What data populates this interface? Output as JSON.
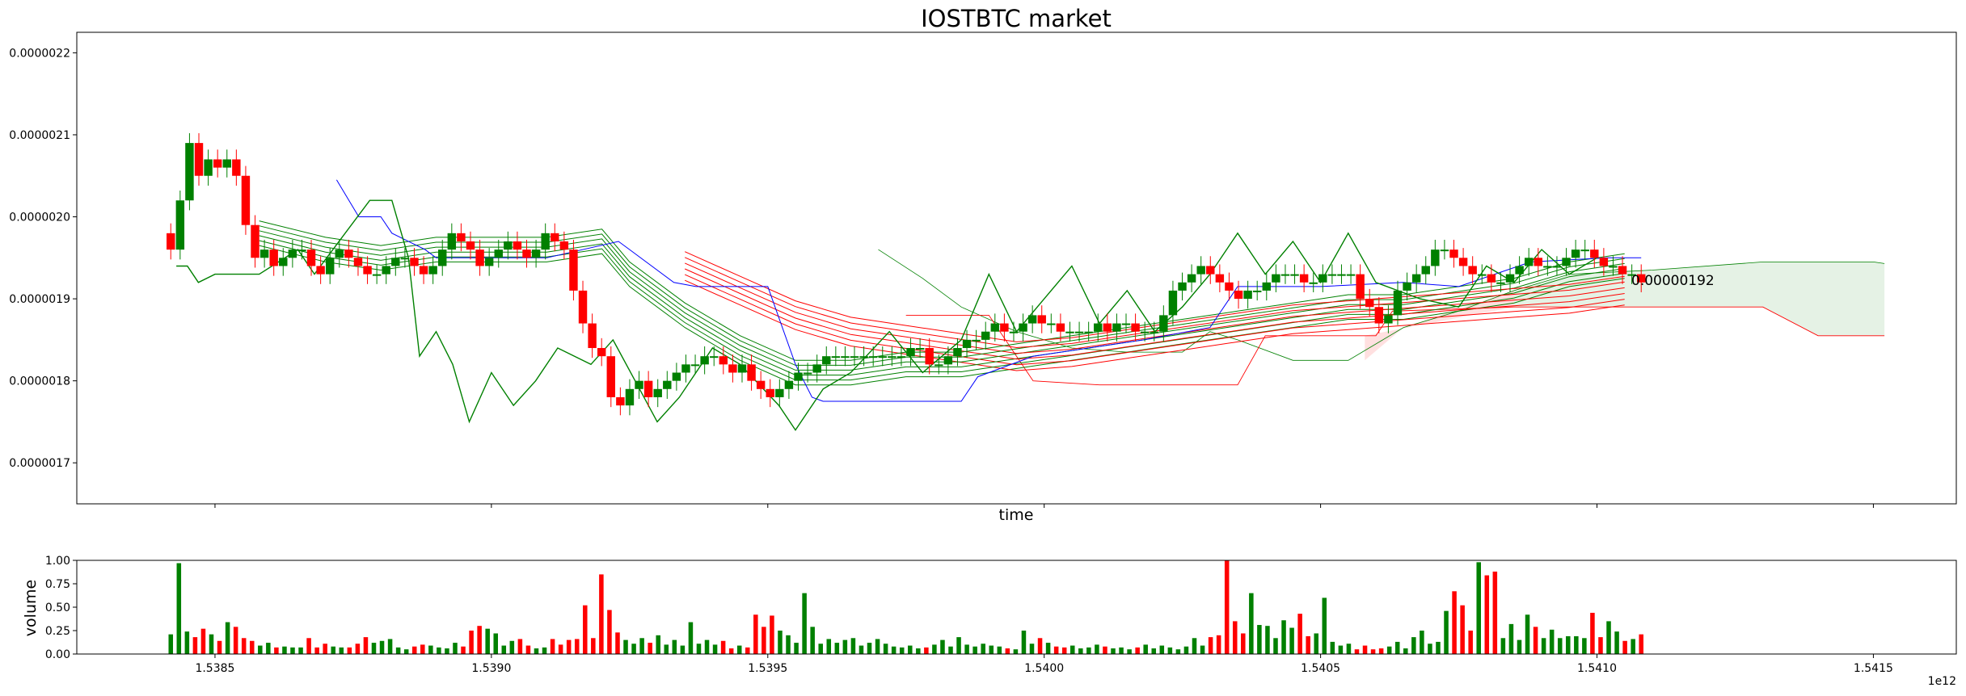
{
  "chart_data": [
    {
      "type": "candlestick",
      "title": "IOSTBTC market",
      "xlabel": "time",
      "ylabel": "",
      "x_unit": "ms timestamp",
      "x_offset_label": "1e12",
      "xlim": [
        1.53825,
        1.54165
      ],
      "ylim": [
        1.65e-06,
        2.225e-06
      ],
      "x_ticks": [
        1.5385,
        1.539,
        1.5395,
        1.54,
        1.5405,
        1.541,
        1.5415
      ],
      "y_ticks": [
        1.7e-06,
        1.8e-06,
        1.9e-06,
        2e-06,
        2.1e-06,
        2.2e-06
      ],
      "y_tick_labels": [
        "0.0000017",
        "0.0000018",
        "0.0000019",
        "0.0000020",
        "0.0000021",
        "0.0000022"
      ],
      "annotations": [
        {
          "text": "0.00000192",
          "x": 1.54108,
          "y": 1.925e-06
        }
      ],
      "candles_x_start": 1.53842,
      "candles_x_end": 1.54108,
      "candle_closes": [
        1.96,
        2.02,
        2.09,
        2.05,
        2.07,
        2.06,
        2.07,
        2.05,
        1.99,
        1.95,
        1.96,
        1.94,
        1.95,
        1.96,
        1.96,
        1.94,
        1.93,
        1.95,
        1.96,
        1.95,
        1.94,
        1.93,
        1.93,
        1.94,
        1.95,
        1.95,
        1.94,
        1.93,
        1.94,
        1.96,
        1.98,
        1.97,
        1.96,
        1.94,
        1.95,
        1.96,
        1.97,
        1.96,
        1.95,
        1.96,
        1.98,
        1.97,
        1.96,
        1.91,
        1.87,
        1.84,
        1.83,
        1.78,
        1.77,
        1.79,
        1.8,
        1.78,
        1.79,
        1.8,
        1.81,
        1.82,
        1.82,
        1.83,
        1.83,
        1.82,
        1.81,
        1.82,
        1.8,
        1.79,
        1.78,
        1.79,
        1.8,
        1.81,
        1.81,
        1.82,
        1.83,
        1.83,
        1.83,
        1.83,
        1.83,
        1.83,
        1.83,
        1.83,
        1.83,
        1.84,
        1.84,
        1.82,
        1.82,
        1.83,
        1.84,
        1.85,
        1.85,
        1.86,
        1.87,
        1.86,
        1.86,
        1.87,
        1.88,
        1.87,
        1.87,
        1.86,
        1.86,
        1.86,
        1.86,
        1.87,
        1.86,
        1.87,
        1.87,
        1.86,
        1.86,
        1.86,
        1.88,
        1.91,
        1.92,
        1.93,
        1.94,
        1.93,
        1.92,
        1.91,
        1.9,
        1.91,
        1.91,
        1.92,
        1.93,
        1.93,
        1.93,
        1.92,
        1.92,
        1.93,
        1.93,
        1.93,
        1.93,
        1.9,
        1.89,
        1.87,
        1.88,
        1.91,
        1.92,
        1.93,
        1.94,
        1.96,
        1.96,
        1.95,
        1.94,
        1.93,
        1.93,
        1.92,
        1.92,
        1.93,
        1.94,
        1.95,
        1.94,
        1.94,
        1.94,
        1.95,
        1.96,
        1.96,
        1.95,
        1.94,
        1.94,
        1.93,
        1.93,
        1.92
      ],
      "moving_averages": {
        "green_short": [
          [
            1.53858,
            1.98
          ],
          [
            1.5387,
            1.96
          ],
          [
            1.5388,
            1.95
          ],
          [
            1.5389,
            1.96
          ],
          [
            1.539,
            1.96
          ],
          [
            1.5391,
            1.96
          ],
          [
            1.5392,
            1.97
          ],
          [
            1.53925,
            1.93
          ],
          [
            1.53935,
            1.88
          ],
          [
            1.53945,
            1.84
          ],
          [
            1.53955,
            1.81
          ],
          [
            1.53965,
            1.81
          ],
          [
            1.53975,
            1.82
          ],
          [
            1.53985,
            1.82
          ],
          [
            1.53995,
            1.83
          ],
          [
            1.54005,
            1.84
          ],
          [
            1.54015,
            1.85
          ],
          [
            1.54025,
            1.86
          ],
          [
            1.54035,
            1.87
          ],
          [
            1.54045,
            1.88
          ],
          [
            1.54055,
            1.89
          ],
          [
            1.54065,
            1.89
          ],
          [
            1.54075,
            1.9
          ],
          [
            1.54085,
            1.91
          ],
          [
            1.54095,
            1.93
          ],
          [
            1.54105,
            1.94
          ]
        ],
        "red_long": [
          [
            1.53935,
            1.94
          ],
          [
            1.53945,
            1.91
          ],
          [
            1.53955,
            1.88
          ],
          [
            1.53965,
            1.86
          ],
          [
            1.53975,
            1.85
          ],
          [
            1.53985,
            1.84
          ],
          [
            1.53995,
            1.83
          ],
          [
            1.54005,
            1.835
          ],
          [
            1.54015,
            1.845
          ],
          [
            1.54025,
            1.855
          ],
          [
            1.54035,
            1.865
          ],
          [
            1.54045,
            1.875
          ],
          [
            1.54055,
            1.88
          ],
          [
            1.54065,
            1.885
          ],
          [
            1.54075,
            1.89
          ],
          [
            1.54085,
            1.895
          ],
          [
            1.54095,
            1.9
          ],
          [
            1.54105,
            1.91
          ]
        ]
      },
      "channel_blue": [
        [
          1.53872,
          2.045
        ],
        [
          1.53876,
          2.0
        ],
        [
          1.5388,
          2.0
        ],
        [
          1.53882,
          1.98
        ],
        [
          1.53888,
          1.96
        ],
        [
          1.5389,
          1.95
        ],
        [
          1.5391,
          1.95
        ],
        [
          1.53923,
          1.97
        ],
        [
          1.53925,
          1.96
        ],
        [
          1.53933,
          1.92
        ],
        [
          1.53937,
          1.915
        ],
        [
          1.5395,
          1.915
        ],
        [
          1.53955,
          1.82
        ],
        [
          1.53958,
          1.78
        ],
        [
          1.5396,
          1.775
        ],
        [
          1.53985,
          1.775
        ],
        [
          1.53988,
          1.805
        ],
        [
          1.53998,
          1.83
        ],
        [
          1.54018,
          1.85
        ],
        [
          1.5403,
          1.865
        ],
        [
          1.54035,
          1.915
        ],
        [
          1.5405,
          1.915
        ],
        [
          1.54065,
          1.92
        ],
        [
          1.54075,
          1.915
        ],
        [
          1.54088,
          1.945
        ],
        [
          1.54102,
          1.95
        ],
        [
          1.54108,
          1.95
        ]
      ],
      "oscillator_green": [
        [
          1.53843,
          1.94
        ],
        [
          1.53845,
          1.94
        ],
        [
          1.53847,
          1.92
        ],
        [
          1.5385,
          1.93
        ],
        [
          1.53858,
          1.93
        ],
        [
          1.53865,
          1.96
        ],
        [
          1.53868,
          1.93
        ],
        [
          1.53878,
          2.02
        ],
        [
          1.53882,
          2.02
        ],
        [
          1.53885,
          1.95
        ],
        [
          1.53887,
          1.83
        ],
        [
          1.5389,
          1.86
        ],
        [
          1.53893,
          1.82
        ],
        [
          1.53896,
          1.75
        ],
        [
          1.539,
          1.81
        ],
        [
          1.53904,
          1.77
        ],
        [
          1.53908,
          1.8
        ],
        [
          1.53912,
          1.84
        ],
        [
          1.53918,
          1.82
        ],
        [
          1.53922,
          1.85
        ],
        [
          1.53926,
          1.8
        ],
        [
          1.5393,
          1.75
        ],
        [
          1.53934,
          1.78
        ],
        [
          1.5394,
          1.84
        ],
        [
          1.53945,
          1.82
        ],
        [
          1.53952,
          1.77
        ],
        [
          1.53955,
          1.74
        ],
        [
          1.5396,
          1.79
        ],
        [
          1.53965,
          1.81
        ],
        [
          1.53972,
          1.86
        ],
        [
          1.53978,
          1.81
        ],
        [
          1.53985,
          1.85
        ],
        [
          1.5399,
          1.93
        ],
        [
          1.53995,
          1.86
        ],
        [
          1.54,
          1.9
        ],
        [
          1.54005,
          1.94
        ],
        [
          1.5401,
          1.87
        ],
        [
          1.54015,
          1.91
        ],
        [
          1.5402,
          1.86
        ],
        [
          1.54025,
          1.89
        ],
        [
          1.5403,
          1.93
        ],
        [
          1.54035,
          1.98
        ],
        [
          1.5404,
          1.93
        ],
        [
          1.54045,
          1.97
        ],
        [
          1.5405,
          1.92
        ],
        [
          1.54055,
          1.98
        ],
        [
          1.5406,
          1.92
        ],
        [
          1.54068,
          1.9
        ],
        [
          1.54075,
          1.89
        ],
        [
          1.5408,
          1.94
        ],
        [
          1.54085,
          1.92
        ],
        [
          1.5409,
          1.96
        ],
        [
          1.54095,
          1.93
        ],
        [
          1.541,
          1.95
        ]
      ],
      "cloud": {
        "lead_a": [
          [
            1.5397,
            1.96
          ],
          [
            1.53978,
            1.925
          ],
          [
            1.53985,
            1.89
          ],
          [
            1.53995,
            1.86
          ],
          [
            1.54005,
            1.84
          ],
          [
            1.54015,
            1.835
          ],
          [
            1.54025,
            1.835
          ],
          [
            1.5403,
            1.86
          ],
          [
            1.54035,
            1.85
          ],
          [
            1.54045,
            1.825
          ],
          [
            1.54055,
            1.825
          ],
          [
            1.54065,
            1.865
          ],
          [
            1.54075,
            1.885
          ],
          [
            1.54085,
            1.91
          ],
          [
            1.54095,
            1.93
          ],
          [
            1.5411,
            1.935
          ],
          [
            1.5413,
            1.945
          ],
          [
            1.5415,
            1.945
          ],
          [
            1.54152,
            1.943
          ]
        ],
        "lead_b": [
          [
            1.53975,
            1.88
          ],
          [
            1.5399,
            1.88
          ],
          [
            1.53998,
            1.8
          ],
          [
            1.5401,
            1.795
          ],
          [
            1.54035,
            1.795
          ],
          [
            1.5404,
            1.855
          ],
          [
            1.5406,
            1.855
          ],
          [
            1.54063,
            1.885
          ],
          [
            1.54085,
            1.89
          ],
          [
            1.541,
            1.89
          ],
          [
            1.5413,
            1.89
          ],
          [
            1.5414,
            1.855
          ],
          [
            1.54152,
            1.855
          ]
        ],
        "bull_color": "#008000",
        "bear_color": "#ff0000"
      },
      "colors": {
        "up": "#008000",
        "down": "#ff0000",
        "channel": "#0000ff"
      }
    },
    {
      "type": "bar",
      "title": "",
      "xlabel": "",
      "ylabel": "volume",
      "ylim": [
        0,
        1.0
      ],
      "y_ticks": [
        0.0,
        0.25,
        0.5,
        0.75,
        1.0
      ],
      "y_tick_labels": [
        "0.00",
        "0.25",
        "0.50",
        "0.75",
        "1.00"
      ],
      "x_ticks": [
        1.5385,
        1.539,
        1.5395,
        1.54,
        1.5405,
        1.541,
        1.5415
      ],
      "x_tick_labels": [
        "1.5385",
        "1.5390",
        "1.5395",
        "1.5400",
        "1.5405",
        "1.5410",
        "1.5415"
      ],
      "x_offset_label": "1e12",
      "volumes": [
        0.21,
        0.97,
        0.24,
        0.18,
        0.27,
        0.21,
        0.14,
        0.34,
        0.29,
        0.17,
        0.14,
        0.09,
        0.12,
        0.07,
        0.08,
        0.07,
        0.07,
        0.17,
        0.07,
        0.11,
        0.08,
        0.07,
        0.07,
        0.11,
        0.18,
        0.12,
        0.14,
        0.16,
        0.07,
        0.05,
        0.08,
        0.1,
        0.09,
        0.07,
        0.06,
        0.12,
        0.08,
        0.25,
        0.3,
        0.27,
        0.22,
        0.09,
        0.14,
        0.16,
        0.09,
        0.06,
        0.07,
        0.16,
        0.1,
        0.15,
        0.16,
        0.52,
        0.17,
        0.85,
        0.47,
        0.23,
        0.15,
        0.11,
        0.17,
        0.12,
        0.2,
        0.1,
        0.15,
        0.09,
        0.34,
        0.11,
        0.15,
        0.1,
        0.14,
        0.06,
        0.09,
        0.07,
        0.42,
        0.29,
        0.41,
        0.25,
        0.2,
        0.12,
        0.65,
        0.29,
        0.11,
        0.16,
        0.12,
        0.15,
        0.17,
        0.09,
        0.12,
        0.16,
        0.11,
        0.08,
        0.07,
        0.09,
        0.06,
        0.07,
        0.1,
        0.15,
        0.08,
        0.18,
        0.1,
        0.08,
        0.11,
        0.09,
        0.08,
        0.06,
        0.05,
        0.25,
        0.11,
        0.17,
        0.12,
        0.08,
        0.07,
        0.09,
        0.06,
        0.07,
        0.1,
        0.08,
        0.06,
        0.07,
        0.05,
        0.07,
        0.1,
        0.06,
        0.09,
        0.07,
        0.05,
        0.08,
        0.17,
        0.09,
        0.18,
        0.2,
        1.0,
        0.35,
        0.22,
        0.65,
        0.31,
        0.3,
        0.17,
        0.36,
        0.28,
        0.43,
        0.19,
        0.22,
        0.6,
        0.13,
        0.09,
        0.11,
        0.05,
        0.09,
        0.05,
        0.06,
        0.08,
        0.13,
        0.06,
        0.18,
        0.25,
        0.11,
        0.13,
        0.46,
        0.67,
        0.52,
        0.25,
        0.98,
        0.84,
        0.88,
        0.17,
        0.32,
        0.15,
        0.42,
        0.29,
        0.17,
        0.26,
        0.17,
        0.19,
        0.19,
        0.17,
        0.44,
        0.18,
        0.35,
        0.24,
        0.14,
        0.16,
        0.21
      ],
      "colors": {
        "up": "#008000",
        "down": "#ff0000"
      }
    }
  ]
}
